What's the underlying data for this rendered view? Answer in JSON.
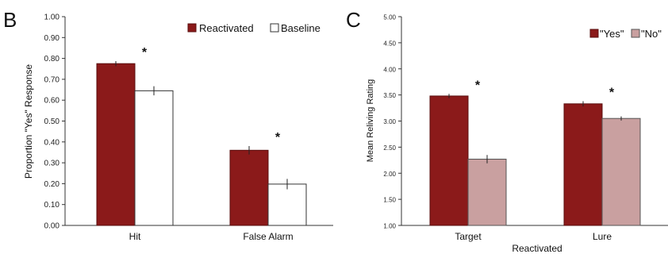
{
  "chart_data": [
    {
      "panel_label": "B",
      "type": "bar",
      "categories": [
        "Hit",
        "False Alarm"
      ],
      "series": [
        {
          "name": "Reactivated",
          "values": [
            0.775,
            0.36
          ],
          "errors": [
            0.012,
            0.02
          ],
          "color": "#8b1a1a",
          "stroke": "#5a0e0e"
        },
        {
          "name": "Baseline",
          "values": [
            0.645,
            0.198
          ],
          "errors": [
            0.022,
            0.025
          ],
          "color": "#ffffff",
          "stroke": "#333333"
        }
      ],
      "significance": [
        "*",
        "*"
      ],
      "ylabel": "Proportion \"Yes\" Response",
      "xlabel": "",
      "ylim": [
        0,
        1
      ],
      "yticks": [
        "0.00",
        "0.10",
        "0.20",
        "0.30",
        "0.40",
        "0.50",
        "0.60",
        "0.70",
        "0.80",
        "0.90",
        "1.00"
      ],
      "legend_position": "top-right",
      "grid": false
    },
    {
      "panel_label": "C",
      "type": "bar",
      "categories": [
        "Target",
        "Lure"
      ],
      "group_label": "Reactivated",
      "series": [
        {
          "name": "\"Yes\"",
          "values": [
            3.48,
            3.33
          ],
          "errors": [
            0.04,
            0.05
          ],
          "color": "#8b1a1a",
          "stroke": "#5a0e0e"
        },
        {
          "name": "\"No\"",
          "values": [
            2.27,
            3.05
          ],
          "errors": [
            0.08,
            0.04
          ],
          "color": "#c9a0a0",
          "stroke": "#555555"
        }
      ],
      "significance": [
        "*",
        "*"
      ],
      "ylabel": "Mean Reliving Rating",
      "xlabel": "",
      "ylim": [
        1,
        5
      ],
      "yticks": [
        "1.00",
        "1.50",
        "2.00",
        "2.50",
        "3.00",
        "3.50",
        "4.00",
        "4.50",
        "5.00"
      ],
      "legend_position": "top-right",
      "grid": false
    }
  ]
}
